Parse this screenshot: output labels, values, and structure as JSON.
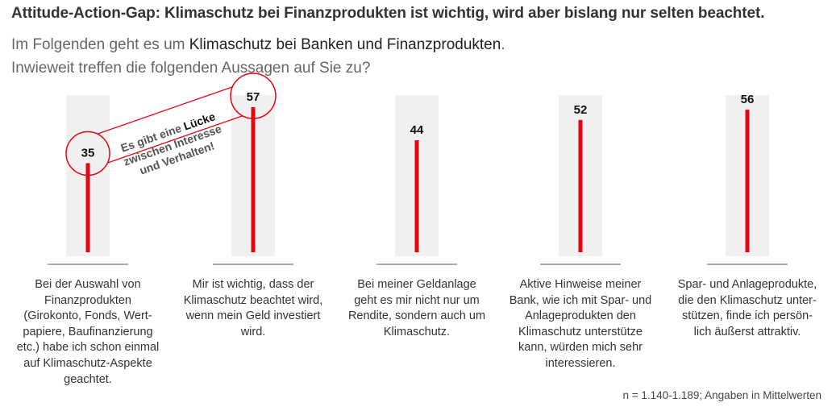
{
  "title": "Attitude-Action-Gap: Klimaschutz bei Finanzprodukten ist wichtig, wird aber bislang nur selten beachtet.",
  "subtitle": {
    "line1_pre": "Im Folgenden geht es um ",
    "line1_emph": "Klimaschutz bei Banken und Finanzprodukten",
    "line1_post": ".",
    "line2": "Inwieweit treffen die folgenden Aussagen auf Sie zu?"
  },
  "chart_data": {
    "type": "bar",
    "orientation": "vertical",
    "title": "Attitude-Action-Gap: Klimaschutz bei Finanzprodukten ist wichtig, wird aber bislang nur selten beachtet.",
    "xlabel": "",
    "ylabel": "",
    "ylim": [
      0,
      60
    ],
    "grid": false,
    "categories": [
      "Bei der Auswahl von Finanzprodukten (Girokonto, Fonds, Wertpapiere, Baufinanzierung etc.) habe ich schon einmal auf Klimaschutz-Aspekte geachtet.",
      "Mir ist wichtig, dass der Klimaschutz beachtet wird, wenn mein Geld investiert wird.",
      "Bei meiner Geldanlage geht es mir nicht nur um Rendite, sondern auch um Klimaschutz.",
      "Aktive Hinweise meiner Bank, wie ich mit Spar- und Anlageprodukten den Klimaschutz unterstütze kann, würden mich sehr interessieren.",
      "Spar- und Anlageprodukte, die den Klimaschutz unterstützen, finde ich persönlich äußerst attraktiv."
    ],
    "values": [
      35,
      57,
      44,
      52,
      56
    ],
    "value_labels": [
      "35",
      "57",
      "44",
      "52",
      "56"
    ],
    "bar_color": "#e30613",
    "track_color": "#f0f0f0",
    "annotation": {
      "lines": [
        "Es gibt eine Lücke",
        "zwischen Interesse",
        "und Verhalten!"
      ],
      "highlight_word": "Lücke",
      "connects_categories": [
        0,
        1
      ]
    }
  },
  "category_labels": [
    [
      "Bei der Auswahl von",
      "Finanzprodukten",
      "(Girokonto, Fonds, Wert-",
      "papiere, Baufinanzierung",
      "etc.) habe ich schon einmal",
      "auf Klimaschutz-Aspekte",
      "geachtet."
    ],
    [
      "Mir ist wichtig, dass der",
      "Klimaschutz beachtet wird,",
      "wenn mein Geld investiert",
      "wird."
    ],
    [
      "Bei meiner Geldanlage",
      "geht es mir nicht nur um",
      "Rendite, sondern auch um",
      "Klimaschutz."
    ],
    [
      "Aktive Hinweise meiner",
      "Bank, wie ich mit Spar- und",
      "Anlageprodukten den",
      "Klimaschutz unterstütze",
      "kann, würden mich sehr",
      "interessieren."
    ],
    [
      "Spar- und Anlageprodukte,",
      "die den Klimaschutz unter-",
      "stützen, finde ich persön-",
      "lich äußerst attraktiv."
    ]
  ],
  "footnote": "n = 1.140-1.189; Angaben in Mittelwerten"
}
